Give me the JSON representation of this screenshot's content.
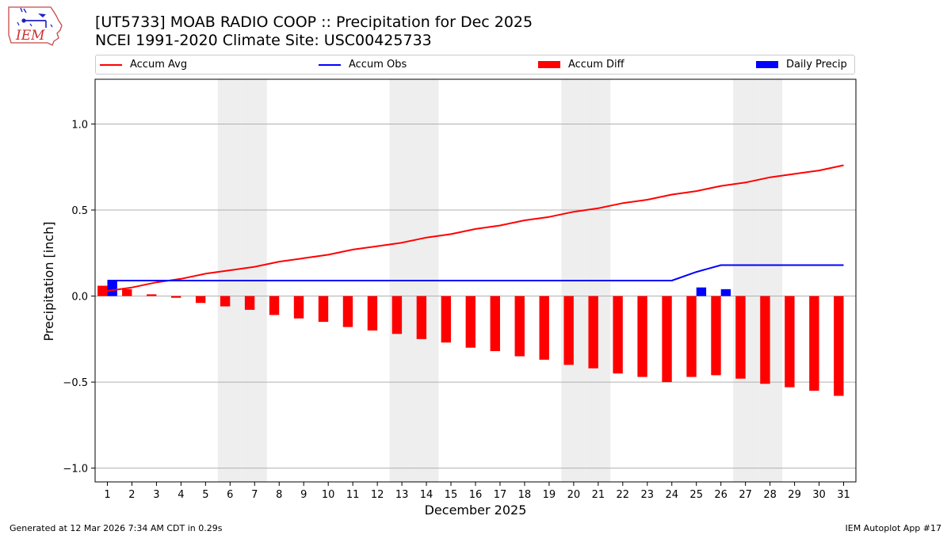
{
  "header": {
    "title_line1": "[UT5733] MOAB RADIO COOP :: Precipitation for Dec 2025",
    "title_line2": "NCEI 1991-2020 Climate Site: USC00425733",
    "logo_text": "IEM"
  },
  "footer": {
    "generated": "Generated at 12 Mar 2026 7:34 AM CDT in 0.29s",
    "app": "IEM Autoplot App #17"
  },
  "chart_data": {
    "type": "bar",
    "xlabel": "December 2025",
    "ylabel": "Precipitation [inch]",
    "ylim": [
      -1.08,
      1.26
    ],
    "yticks": [
      -1.0,
      -0.5,
      0.0,
      0.5,
      1.0
    ],
    "ytick_labels": [
      "−1.0",
      "−0.5",
      "0.0",
      "0.5",
      "1.0"
    ],
    "xlim": [
      0.5,
      31.5
    ],
    "grid": "horizontal",
    "legend_placement": "top",
    "x": [
      1,
      2,
      3,
      4,
      5,
      6,
      7,
      8,
      9,
      10,
      11,
      12,
      13,
      14,
      15,
      16,
      17,
      18,
      19,
      20,
      21,
      22,
      23,
      24,
      25,
      26,
      27,
      28,
      29,
      30,
      31
    ],
    "weekend_days": [
      6,
      7,
      13,
      14,
      20,
      21,
      27,
      28
    ],
    "colors": {
      "accum_avg": "#ff0000",
      "accum_obs": "#0000ff",
      "accum_diff": "#ff0000",
      "daily_precip": "#0000ff",
      "weekend_band": "#eeeeee"
    },
    "series": [
      {
        "name": "Accum Avg",
        "kind": "line",
        "values": [
          0.03,
          0.05,
          0.08,
          0.1,
          0.13,
          0.15,
          0.17,
          0.2,
          0.22,
          0.24,
          0.27,
          0.29,
          0.31,
          0.34,
          0.36,
          0.39,
          0.41,
          0.44,
          0.46,
          0.49,
          0.51,
          0.54,
          0.56,
          0.59,
          0.61,
          0.64,
          0.66,
          0.69,
          0.71,
          0.73,
          0.76
        ]
      },
      {
        "name": "Accum Obs",
        "kind": "line",
        "values": [
          0.09,
          0.09,
          0.09,
          0.09,
          0.09,
          0.09,
          0.09,
          0.09,
          0.09,
          0.09,
          0.09,
          0.09,
          0.09,
          0.09,
          0.09,
          0.09,
          0.09,
          0.09,
          0.09,
          0.09,
          0.09,
          0.09,
          0.09,
          0.09,
          0.14,
          0.18,
          0.18,
          0.18,
          0.18,
          0.18,
          0.18
        ]
      },
      {
        "name": "Accum Diff",
        "kind": "bar",
        "values": [
          0.06,
          0.04,
          0.01,
          -0.01,
          -0.04,
          -0.06,
          -0.08,
          -0.11,
          -0.13,
          -0.15,
          -0.18,
          -0.2,
          -0.22,
          -0.25,
          -0.27,
          -0.3,
          -0.32,
          -0.35,
          -0.37,
          -0.4,
          -0.42,
          -0.45,
          -0.47,
          -0.5,
          -0.47,
          -0.46,
          -0.48,
          -0.51,
          -0.53,
          -0.55,
          -0.58
        ]
      },
      {
        "name": "Daily Precip",
        "kind": "bar",
        "values": [
          0.09,
          0,
          0,
          0,
          0,
          0,
          0,
          0,
          0,
          0,
          0,
          0,
          0,
          0,
          0,
          0,
          0,
          0,
          0,
          0,
          0,
          0,
          0,
          0,
          0.05,
          0.04,
          0,
          0,
          0,
          0,
          0
        ]
      }
    ]
  }
}
